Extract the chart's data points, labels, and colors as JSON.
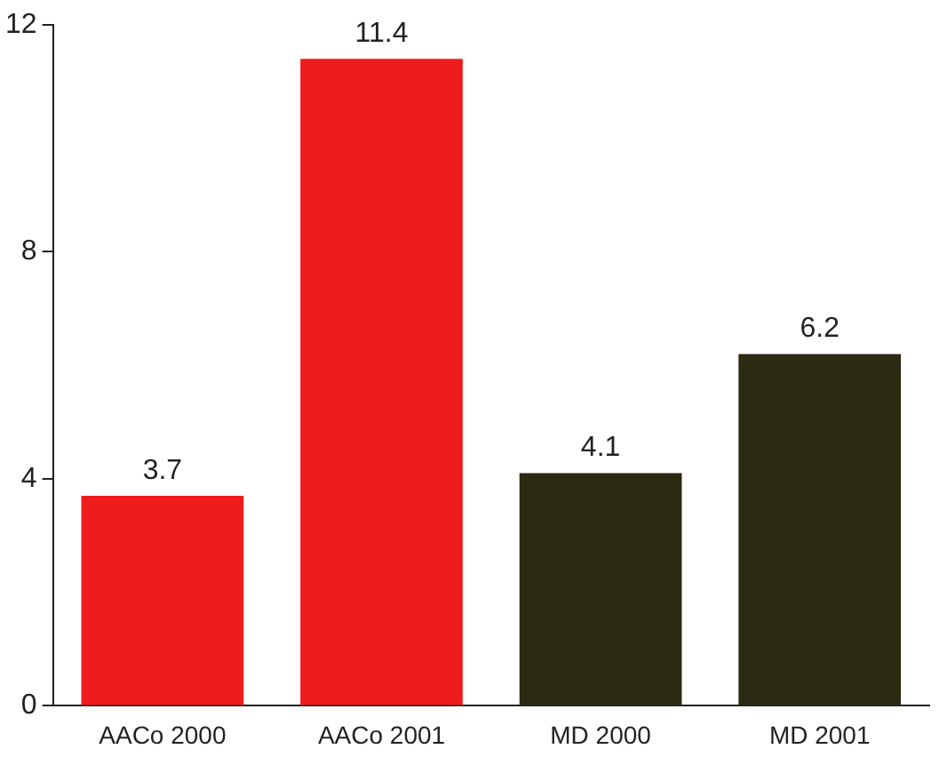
{
  "chart_data": {
    "type": "bar",
    "categories": [
      "AACo 2000",
      "AACo 2001",
      "MD 2000",
      "MD 2001"
    ],
    "values": [
      3.7,
      11.4,
      4.1,
      6.2
    ],
    "colors": [
      "#ee1c1c",
      "#ee1c1c",
      "#2b2a12",
      "#2b2a12"
    ],
    "ylim": [
      0,
      12
    ],
    "yticks": [
      0,
      4,
      8,
      12
    ],
    "grid": false,
    "data_labels": true
  }
}
